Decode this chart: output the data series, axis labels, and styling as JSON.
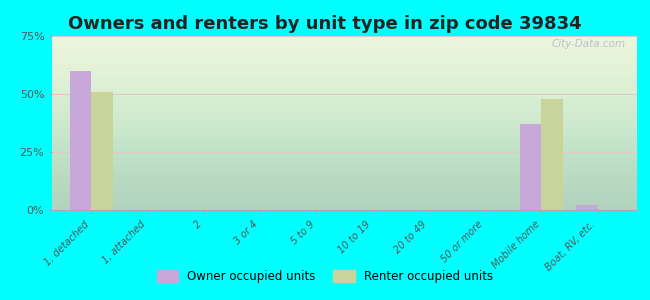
{
  "title": "Owners and renters by unit type in zip code 39834",
  "categories": [
    "1, detached",
    "1, attached",
    "2",
    "3 or 4",
    "5 to 9",
    "10 to 19",
    "20 to 49",
    "50 or more",
    "Mobile home",
    "Boat, RV, etc."
  ],
  "owner_values": [
    60,
    0,
    0,
    0,
    0,
    0,
    0,
    0,
    37,
    2
  ],
  "renter_values": [
    51,
    0,
    0,
    0,
    0,
    0,
    0,
    0,
    48,
    0
  ],
  "owner_color": "#c8a8d8",
  "renter_color": "#c8d49a",
  "background_color": "#00ffff",
  "ylim": [
    0,
    75
  ],
  "yticks": [
    0,
    25,
    50,
    75
  ],
  "ytick_labels": [
    "0%",
    "25%",
    "50%",
    "75%"
  ],
  "legend_owner": "Owner occupied units",
  "legend_renter": "Renter occupied units",
  "title_fontsize": 13,
  "watermark": "City-Data.com"
}
